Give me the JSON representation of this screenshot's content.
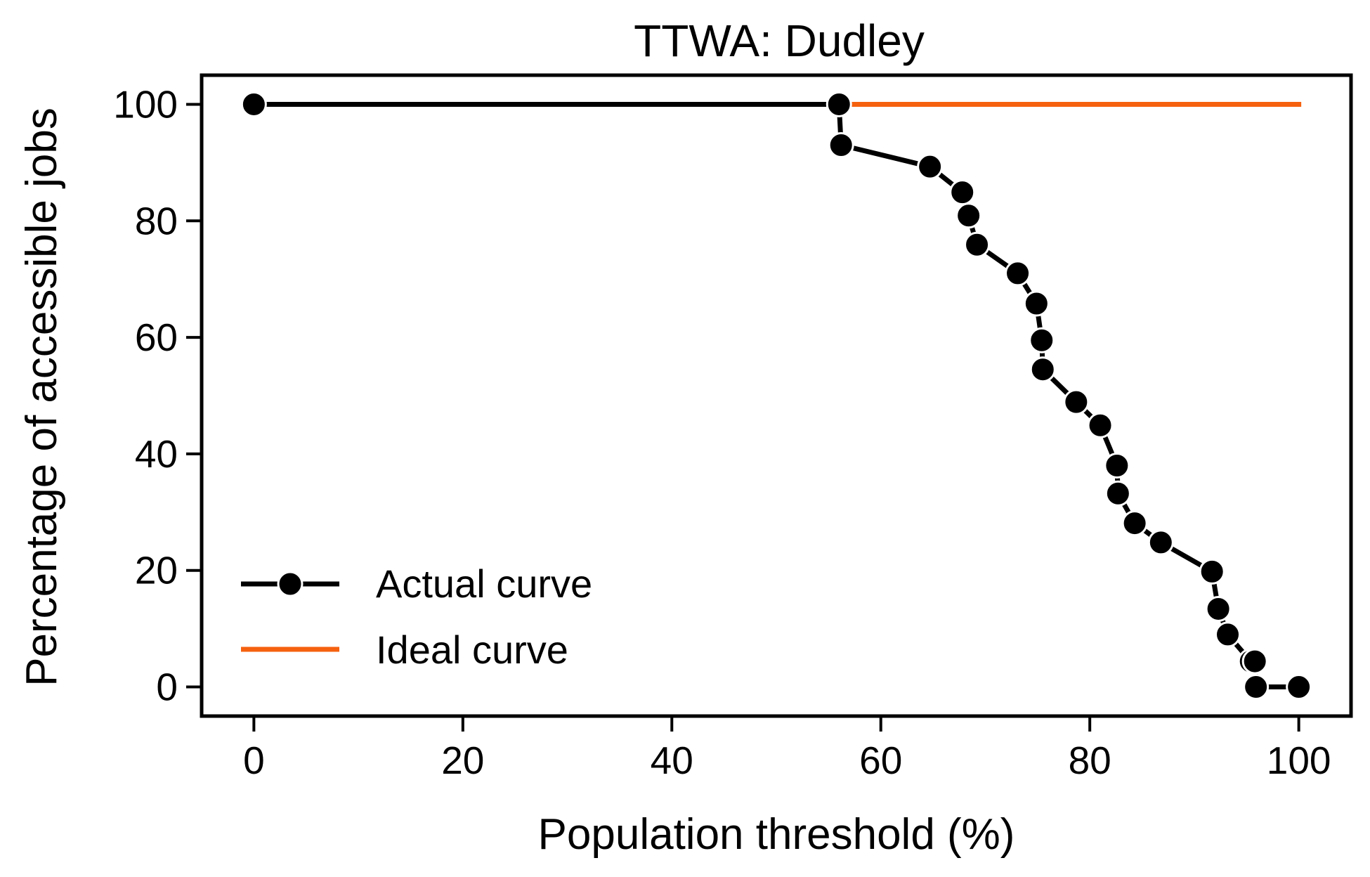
{
  "chart_data": {
    "type": "line",
    "title": "TTWA: Dudley",
    "xlabel": "Population threshold (%)",
    "ylabel": "Percentage of accessible jobs",
    "xlim": [
      -5,
      105
    ],
    "ylim": [
      -5,
      105
    ],
    "xticks": [
      0,
      20,
      40,
      60,
      80,
      100
    ],
    "yticks": [
      0,
      20,
      40,
      60,
      80,
      100
    ],
    "grid": false,
    "legend_position": "lower-left",
    "series": [
      {
        "name": "Actual curve",
        "color": "#000000",
        "marker": "circle",
        "x": [
          0,
          56.0,
          56.2,
          64.7,
          67.8,
          68.4,
          69.2,
          73.1,
          74.9,
          75.4,
          75.5,
          78.7,
          81.0,
          82.6,
          82.7,
          84.3,
          86.8,
          91.7,
          92.3,
          93.2,
          95.4,
          95.8,
          95.9,
          100
        ],
        "y": [
          100,
          100,
          93.0,
          89.3,
          84.9,
          80.9,
          75.9,
          71.0,
          65.8,
          59.5,
          54.5,
          48.9,
          44.9,
          38.0,
          33.2,
          28.1,
          24.8,
          19.8,
          13.4,
          9.0,
          4.4,
          4.4,
          0,
          0
        ]
      },
      {
        "name": "Ideal curve",
        "color": "#f5610f",
        "marker": "none",
        "x": [
          0,
          100
        ],
        "y": [
          100,
          100
        ]
      }
    ]
  }
}
